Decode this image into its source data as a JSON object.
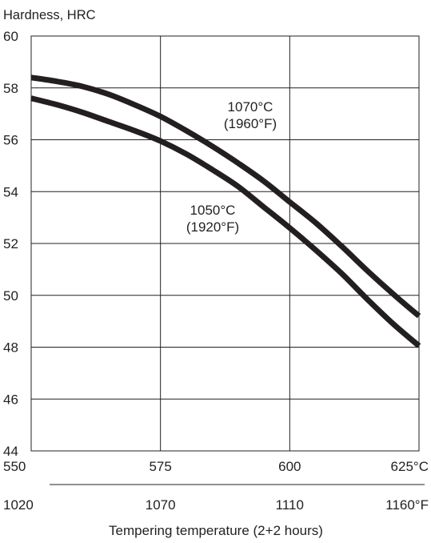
{
  "chart_data": {
    "type": "line",
    "title": "",
    "ylabel": "Hardness, HRC",
    "xlabel": "Tempering temperature (2+2 hours)",
    "xlim": [
      550,
      625
    ],
    "ylim": [
      44,
      60
    ],
    "grid": true,
    "x_ticks_celsius": [
      "550",
      "575",
      "600",
      "625°C"
    ],
    "x_ticks_fahrenheit": [
      "1020",
      "1070",
      "1110",
      "1160°F"
    ],
    "x_tick_values": [
      550,
      575,
      600,
      625
    ],
    "y_ticks": [
      44,
      46,
      48,
      50,
      52,
      54,
      56,
      58,
      60
    ],
    "series": [
      {
        "label_lines": [
          "1070°C",
          "(1960°F)"
        ],
        "x": [
          550,
          555,
          560,
          565,
          570,
          575,
          580,
          585,
          590,
          595,
          600,
          605,
          610,
          615,
          620,
          625
        ],
        "y": [
          58.4,
          58.25,
          58.05,
          57.75,
          57.35,
          56.9,
          56.35,
          55.75,
          55.1,
          54.4,
          53.6,
          52.8,
          51.9,
          50.95,
          50.05,
          49.2
        ]
      },
      {
        "label_lines": [
          "1050°C",
          "(1920°F)"
        ],
        "x": [
          550,
          555,
          560,
          565,
          570,
          575,
          580,
          585,
          590,
          595,
          600,
          605,
          610,
          615,
          620,
          625
        ],
        "y": [
          57.6,
          57.35,
          57.05,
          56.7,
          56.35,
          55.95,
          55.45,
          54.85,
          54.2,
          53.4,
          52.6,
          51.75,
          50.85,
          49.85,
          48.9,
          48.05
        ]
      }
    ]
  }
}
